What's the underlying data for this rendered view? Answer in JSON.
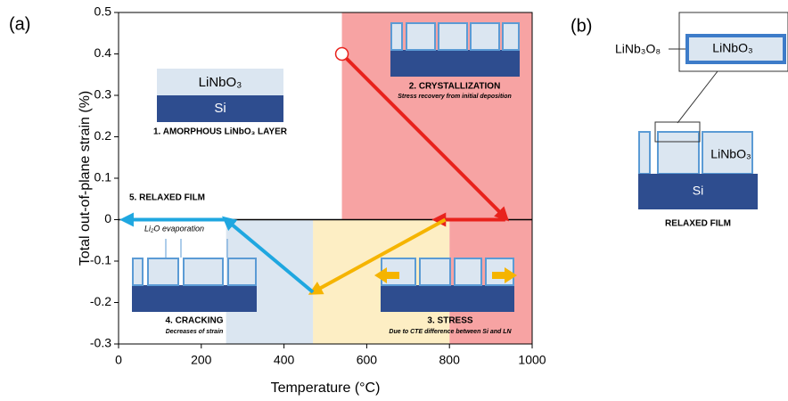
{
  "chart_data": {
    "type": "line",
    "panel_labels": [
      "(a)",
      "(b)"
    ],
    "x_label": "Temperature (°C)",
    "y_label": "Total out-of-plane strain (%)",
    "xlim": [
      0,
      1000
    ],
    "xticks": [
      0,
      200,
      400,
      600,
      800,
      1000
    ],
    "ylim": [
      -0.3,
      0.5
    ],
    "yticks": [
      0.5,
      0.4,
      0.3,
      0.2,
      0.1,
      0,
      -0.1,
      -0.2,
      -0.3
    ],
    "regions": [
      {
        "x": [
          540,
          1000
        ],
        "y": [
          0,
          0.5
        ],
        "color": "#f7a3a3"
      },
      {
        "x": [
          800,
          1000
        ],
        "y": [
          -0.3,
          0
        ],
        "color": "#f7a3a3"
      },
      {
        "x": [
          470,
          800
        ],
        "y": [
          -0.3,
          0
        ],
        "color": "#fdeec4"
      },
      {
        "x": [
          260,
          470
        ],
        "y": [
          -0.3,
          0
        ],
        "color": "#dbe6f1"
      }
    ],
    "series": [
      {
        "color": "#e8221c",
        "x": [
          540,
          935
        ],
        "values": [
          0.4,
          0.005
        ]
      },
      {
        "color": "#e8221c",
        "x": [
          935,
          770
        ],
        "values": [
          0,
          0
        ]
      },
      {
        "color": "#f5b400",
        "x": [
          790,
          470
        ],
        "values": [
          0,
          -0.175
        ]
      },
      {
        "color": "#1fa7e0",
        "x": [
          470,
          260
        ],
        "values": [
          -0.175,
          0
        ]
      },
      {
        "color": "#1fa7e0",
        "x": [
          260,
          15
        ],
        "values": [
          0,
          0
        ]
      }
    ],
    "annotations": {
      "lnb": "LiNbO₃",
      "si": "Si",
      "s1": "1. AMORPHOUS LiNbO₃ LAYER",
      "s2": "2. CRYSTALLIZATION",
      "s2sub": "Stress recovery from initial deposition",
      "s5": "5. RELAXED FILM",
      "evap": "Li₂O evaporation",
      "s4": "4. CRACKING",
      "s4sub": "Decreases of strain",
      "s3": "3. STRESS",
      "s3sub": "Due to CTE difference between Si and LN"
    },
    "panel_b": {
      "lnb3o8": "LiNb₃O₈",
      "zoom_layer": "LiNbO₃",
      "film_layer": "LiNbO₃",
      "substrate": "Si",
      "caption": "RELAXED FILM"
    }
  }
}
